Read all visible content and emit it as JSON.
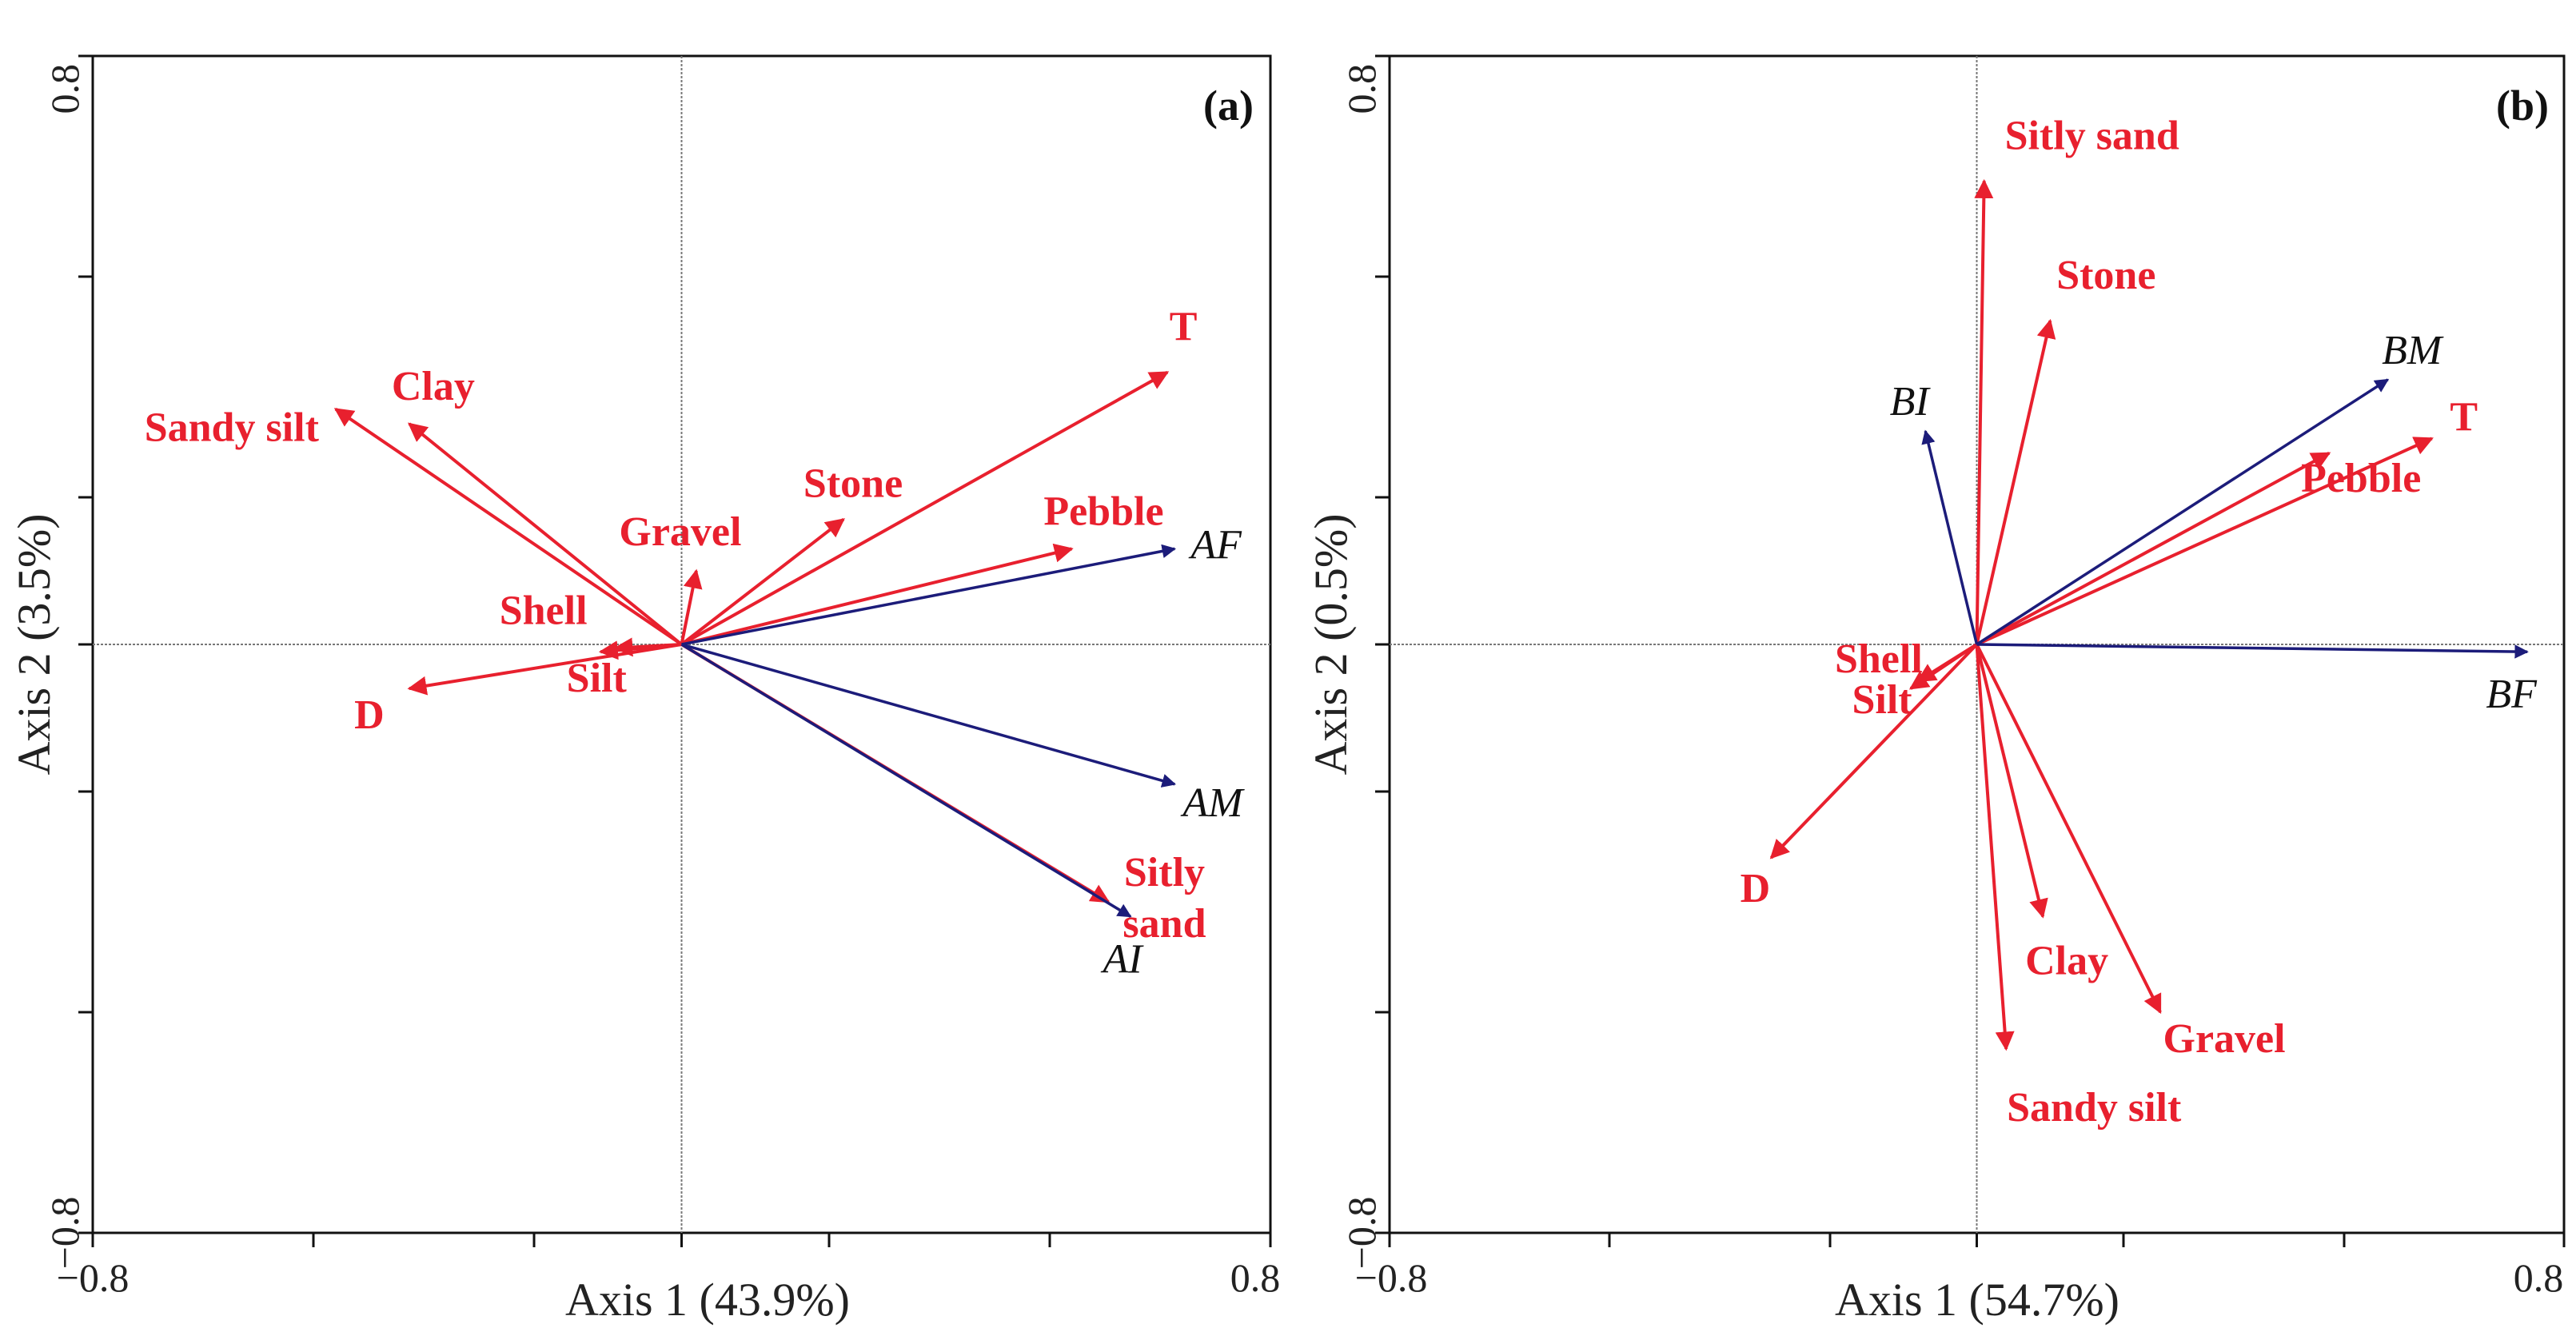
{
  "colors": {
    "env": "#e8202e",
    "species": "#1c1c7a",
    "frame": "#111111",
    "zero_line": "#777777"
  },
  "chart_data": [
    {
      "type": "biplot",
      "panel": "(a)",
      "xlabel": "Axis 1 (43.9%)",
      "ylabel": "Axis 2 (3.5%)",
      "xlim": [
        -0.8,
        0.8
      ],
      "ylim": [
        -0.8,
        0.8
      ],
      "tick_labels": {
        "xmin": "−0.8",
        "xmax": "0.8",
        "ymin": "−0.8",
        "ymax": "0.8"
      },
      "env_vectors": [
        {
          "name": "T",
          "x": 0.66,
          "y": 0.37
        },
        {
          "name": "Pebble",
          "x": 0.53,
          "y": 0.13
        },
        {
          "name": "Stone",
          "x": 0.22,
          "y": 0.17
        },
        {
          "name": "Gravel",
          "x": 0.02,
          "y": 0.1
        },
        {
          "name": "Clay",
          "x": -0.37,
          "y": 0.3
        },
        {
          "name": "Sandy silt",
          "x": -0.47,
          "y": 0.32
        },
        {
          "name": "Shell",
          "x": -0.09,
          "y": -0.005
        },
        {
          "name": "Silt",
          "x": -0.11,
          "y": -0.01
        },
        {
          "name": "D",
          "x": -0.37,
          "y": -0.06
        },
        {
          "name": "Sitly sand",
          "x": 0.58,
          "y": -0.35
        }
      ],
      "species_vectors": [
        {
          "name": "AF",
          "x": 0.67,
          "y": 0.13
        },
        {
          "name": "AM",
          "x": 0.67,
          "y": -0.19
        },
        {
          "name": "AI",
          "x": 0.61,
          "y": -0.37
        }
      ]
    },
    {
      "type": "biplot",
      "panel": "(b)",
      "xlabel": "Axis 1 (54.7%)",
      "ylabel": "Axis 2 (0.5%)",
      "xlim": [
        -0.8,
        0.8
      ],
      "ylim": [
        -0.8,
        0.8
      ],
      "tick_labels": {
        "xmin": "−0.8",
        "xmax": "0.8",
        "ymin": "−0.8",
        "ymax": "0.8"
      },
      "env_vectors": [
        {
          "name": "Sitly sand",
          "x": 0.01,
          "y": 0.63
        },
        {
          "name": "Stone",
          "x": 0.1,
          "y": 0.44
        },
        {
          "name": "T",
          "x": 0.62,
          "y": 0.28
        },
        {
          "name": "Pebble",
          "x": 0.48,
          "y": 0.26
        },
        {
          "name": "Shell",
          "x": -0.09,
          "y": -0.06
        },
        {
          "name": "Silt",
          "x": -0.08,
          "y": -0.05
        },
        {
          "name": "D",
          "x": -0.28,
          "y": -0.29
        },
        {
          "name": "Clay",
          "x": 0.09,
          "y": -0.37
        },
        {
          "name": "Gravel",
          "x": 0.25,
          "y": -0.5
        },
        {
          "name": "Sandy silt",
          "x": 0.04,
          "y": -0.55
        }
      ],
      "species_vectors": [
        {
          "name": "BI",
          "x": -0.07,
          "y": 0.29
        },
        {
          "name": "BM",
          "x": 0.56,
          "y": 0.36
        },
        {
          "name": "BF",
          "x": 0.75,
          "y": -0.01
        }
      ]
    }
  ]
}
